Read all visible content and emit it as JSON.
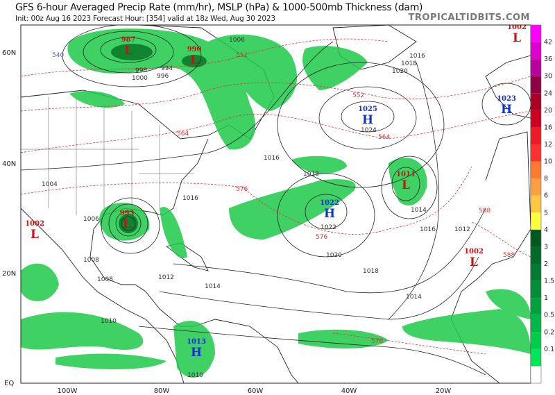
{
  "header": {
    "title": "GFS 6-hour Averaged Precip Rate (mm/hr), MSLP (hPa) & 1000-500mb Thickness (dam)",
    "subtitle": "Init: 00z Aug 16 2023   Forecast Hour: [354]   valid at 18z Wed, Aug 30 2023",
    "brand": "TROPICALTIDBITS.COM"
  },
  "axes": {
    "lat_labels": [
      "60N",
      "40N",
      "20N",
      "EQ"
    ],
    "lon_labels": [
      "100W",
      "80W",
      "60W",
      "40W",
      "20W"
    ]
  },
  "pressure_centers": [
    {
      "type": "L",
      "value": "987",
      "color": "#cc1111"
    },
    {
      "type": "L",
      "value": "990",
      "color": "#cc1111"
    },
    {
      "type": "L",
      "value": "993",
      "color": "#cc1111"
    },
    {
      "type": "L",
      "value": "1002",
      "color": "#cc1111"
    },
    {
      "type": "H",
      "value": "1013",
      "color": "#1133cc"
    },
    {
      "type": "H",
      "value": "1025",
      "color": "#1133cc"
    },
    {
      "type": "H",
      "value": "1022",
      "color": "#1133cc"
    },
    {
      "type": "L",
      "value": "1011",
      "color": "#cc1111"
    },
    {
      "type": "H",
      "value": "1023",
      "color": "#1133cc"
    },
    {
      "type": "L",
      "value": "1002",
      "color": "#cc1111"
    },
    {
      "type": "L",
      "value": "1002",
      "color": "#cc1111"
    }
  ],
  "isobar_labels": [
    "994",
    "996",
    "998",
    "1000",
    "1004",
    "1006",
    "1008",
    "1010",
    "1012",
    "1014",
    "1016",
    "1018",
    "1020",
    "1022",
    "1024",
    "1006",
    "1008",
    "1016",
    "1018",
    "1016",
    "1014",
    "1012",
    "1010",
    "1016",
    "1018",
    "1020",
    "1014"
  ],
  "thickness_labels": [
    "540",
    "552",
    "564",
    "576",
    "588",
    "552",
    "564",
    "576",
    "576",
    "588"
  ],
  "colorbar": {
    "labels": [
      "42",
      "36",
      "30",
      "24",
      "20",
      "16",
      "12",
      "10",
      "8",
      "6",
      "5",
      "4",
      "3",
      "2",
      "1.5",
      "1",
      "0.5",
      "0.2",
      "0.1"
    ],
    "colors": [
      "#ff00ff",
      "#dd00cc",
      "#b8009a",
      "#8c0046",
      "#aa0028",
      "#cc0020",
      "#ee1a28",
      "#ff3030",
      "#ff7a30",
      "#ffa040",
      "#ffc840",
      "#ffff40",
      "#005a20",
      "#006a28",
      "#007d30",
      "#008f38",
      "#00a23e",
      "#00b848",
      "#00cc4c",
      "#00e85a",
      "#ffffff"
    ]
  }
}
